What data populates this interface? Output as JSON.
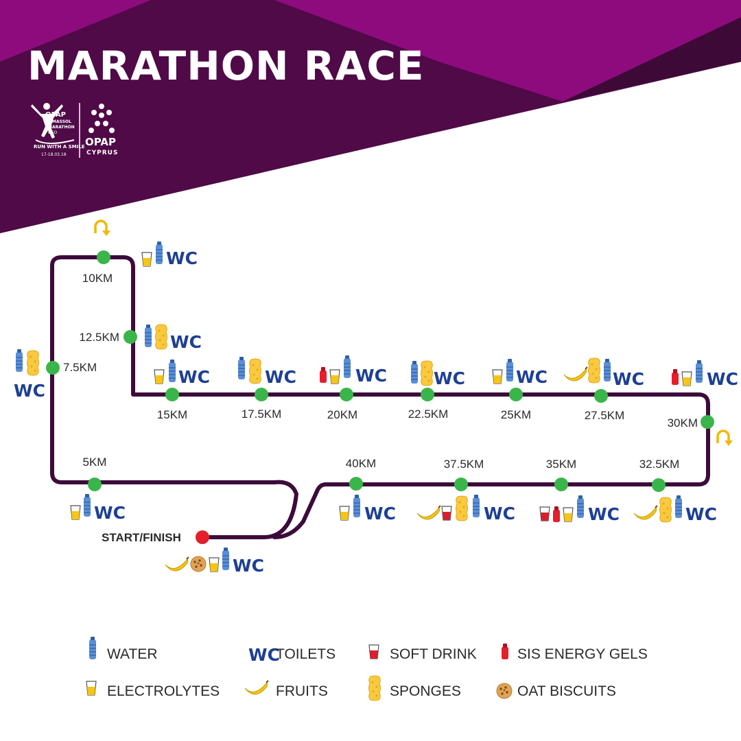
{
  "title": "MARATHON RACE",
  "logo_marathon": {
    "line1": "OPAP",
    "line2": "LIMASSOL",
    "line3": "MARATHON",
    "line4": "GSO",
    "tagline": "RUN WITH A SMILE",
    "dates": "17-18.03.18"
  },
  "logo_opap": {
    "name": "OPAP",
    "country": "CYPRUS"
  },
  "colors": {
    "purple_dark": "#4f0a47",
    "magenta": "#8e0b7e",
    "route": "#3d0b3a",
    "checkpoint": "#3ab54a",
    "start_finish": "#e3202b",
    "turnaround": "#f2b705",
    "wc": "#1d3f95",
    "water": "#5b8fd6"
  },
  "checkpoints": [
    {
      "label": "10KM",
      "icons": [
        "electrolytes-icon",
        "water-icon",
        "wc-icon"
      ]
    },
    {
      "label": "12.5KM",
      "icons": [
        "water-icon",
        "sponge-icon",
        "wc-icon"
      ]
    },
    {
      "label": "7.5KM",
      "icons": [
        "water-icon",
        "sponge-icon",
        "wc-icon"
      ]
    },
    {
      "label": "15KM",
      "icons": [
        "electrolytes-icon",
        "water-icon",
        "wc-icon"
      ]
    },
    {
      "label": "17.5KM",
      "icons": [
        "water-icon",
        "sponge-icon",
        "wc-icon"
      ]
    },
    {
      "label": "20KM",
      "icons": [
        "energy-gel-icon",
        "electrolytes-icon",
        "water-icon",
        "wc-icon"
      ]
    },
    {
      "label": "22.5KM",
      "icons": [
        "water-icon",
        "sponge-icon",
        "wc-icon"
      ]
    },
    {
      "label": "25KM",
      "icons": [
        "electrolytes-icon",
        "water-icon",
        "wc-icon"
      ]
    },
    {
      "label": "27.5KM",
      "icons": [
        "banana-icon",
        "sponge-icon",
        "water-icon",
        "wc-icon"
      ]
    },
    {
      "label": "30KM",
      "icons": [
        "energy-gel-icon",
        "electrolytes-icon",
        "water-icon",
        "wc-icon"
      ]
    },
    {
      "label": "5KM",
      "icons": [
        "electrolytes-icon",
        "water-icon",
        "wc-icon"
      ]
    },
    {
      "label": "40KM",
      "icons": [
        "electrolytes-icon",
        "water-icon",
        "wc-icon"
      ]
    },
    {
      "label": "37.5KM",
      "icons": [
        "banana-icon",
        "soft-drink-icon",
        "sponge-icon",
        "water-icon",
        "wc-icon"
      ]
    },
    {
      "label": "35KM",
      "icons": [
        "soft-drink-icon",
        "energy-gel-icon",
        "electrolytes-icon",
        "water-icon",
        "wc-icon"
      ]
    },
    {
      "label": "32.5KM",
      "icons": [
        "banana-icon",
        "sponge-icon",
        "water-icon",
        "wc-icon"
      ]
    }
  ],
  "start_finish": {
    "label": "START/FINISH",
    "icons": [
      "banana-icon",
      "oat-biscuit-icon",
      "electrolytes-icon",
      "water-icon",
      "wc-icon"
    ]
  },
  "legend": {
    "wc_glyph": "WC",
    "items": [
      {
        "icon": "water-icon",
        "label": "WATER"
      },
      {
        "icon": "wc-icon",
        "label": "TOILETS"
      },
      {
        "icon": "soft-drink-icon",
        "label": "SOFT DRINK"
      },
      {
        "icon": "energy-gel-icon",
        "label": "SIS ENERGY GELS"
      },
      {
        "icon": "electrolytes-icon",
        "label": "ELECTROLYTES"
      },
      {
        "icon": "banana-icon",
        "label": "FRUITS"
      },
      {
        "icon": "sponge-icon",
        "label": "SPONGES"
      },
      {
        "icon": "oat-biscuit-icon",
        "label": "OAT BISCUITS"
      }
    ]
  }
}
